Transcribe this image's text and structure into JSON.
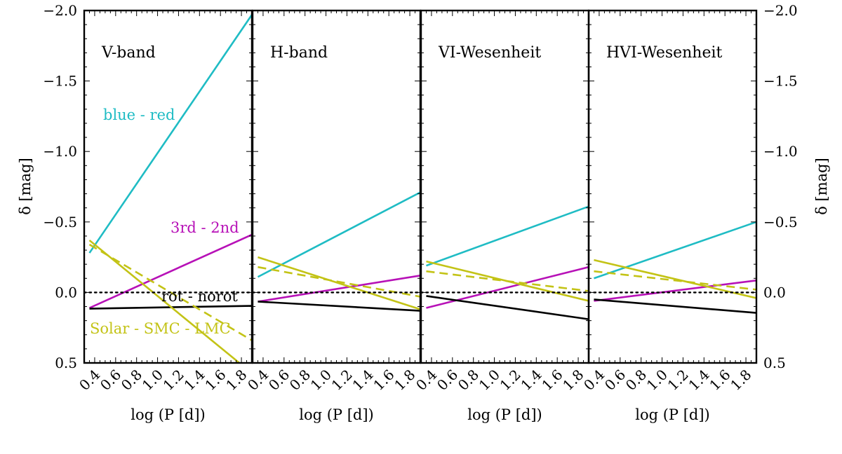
{
  "chart_data": {
    "type": "line",
    "ylabel_left": "δ [mag]",
    "ylabel_right": "δ [mag]",
    "xlabel": "log (P [d])",
    "xlim": [
      0.3,
      1.9
    ],
    "ylim": [
      -2.0,
      0.5
    ],
    "yaxis_inverted": true,
    "xticks": [
      "0.4",
      "0.6",
      "0.8",
      "1.0",
      "1.2",
      "1.4",
      "1.6",
      "1.8"
    ],
    "yticks": [
      "−2.0",
      "−1.5",
      "−1.0",
      "−0.5",
      "0.0",
      "0.5"
    ],
    "colors": {
      "cyan": "#1fbcc4",
      "magenta": "#b711b7",
      "olive": "#c3c316",
      "black": "#000000"
    },
    "annotations": [
      {
        "text": "blue - red",
        "color": "#1fbcc4"
      },
      {
        "text": "3rd - 2nd",
        "color": "#b711b7"
      },
      {
        "text": "rot - norot",
        "color": "#000000"
      },
      {
        "text": "Solar - SMC - LMC",
        "color": "#c3c316"
      }
    ],
    "panels": [
      {
        "title": "V-band",
        "series": [
          {
            "name": "blue - red",
            "color": "#1fbcc4",
            "dash": false,
            "x": [
              0.35,
              1.9
            ],
            "y": [
              -0.28,
              -1.97
            ]
          },
          {
            "name": "3rd - 2nd",
            "color": "#b711b7",
            "dash": false,
            "x": [
              0.35,
              1.9
            ],
            "y": [
              0.11,
              -0.41
            ]
          },
          {
            "name": "rot - norot",
            "color": "#000000",
            "dash": false,
            "x": [
              0.35,
              1.9
            ],
            "y": [
              0.115,
              0.095
            ]
          },
          {
            "name": "Solar - SMC",
            "color": "#c3c316",
            "dash": false,
            "x": [
              0.35,
              1.78
            ],
            "y": [
              -0.37,
              0.5
            ]
          },
          {
            "name": "Solar - LMC",
            "color": "#c3c316",
            "dash": true,
            "x": [
              0.35,
              1.9
            ],
            "y": [
              -0.34,
              0.34
            ]
          },
          {
            "name": "zero",
            "color": "#000000",
            "dotted": true,
            "x": [
              0.3,
              1.9
            ],
            "y": [
              0.0,
              0.0
            ]
          }
        ]
      },
      {
        "title": "H-band",
        "series": [
          {
            "name": "blue - red",
            "color": "#1fbcc4",
            "dash": false,
            "x": [
              0.35,
              1.9
            ],
            "y": [
              -0.11,
              -0.71
            ]
          },
          {
            "name": "3rd - 2nd",
            "color": "#b711b7",
            "dash": false,
            "x": [
              0.35,
              1.9
            ],
            "y": [
              0.065,
              -0.12
            ]
          },
          {
            "name": "rot - norot",
            "color": "#000000",
            "dash": false,
            "x": [
              0.35,
              1.9
            ],
            "y": [
              0.065,
              0.13
            ]
          },
          {
            "name": "Solar - SMC",
            "color": "#c3c316",
            "dash": false,
            "x": [
              0.35,
              1.9
            ],
            "y": [
              -0.25,
              0.12
            ]
          },
          {
            "name": "Solar - LMC",
            "color": "#c3c316",
            "dash": true,
            "x": [
              0.35,
              1.9
            ],
            "y": [
              -0.18,
              0.03
            ]
          },
          {
            "name": "zero",
            "color": "#000000",
            "dotted": true,
            "x": [
              0.3,
              1.9
            ],
            "y": [
              0.0,
              0.0
            ]
          }
        ]
      },
      {
        "title": "VI-Wesenheit",
        "series": [
          {
            "name": "blue - red",
            "color": "#1fbcc4",
            "dash": false,
            "x": [
              0.35,
              1.9
            ],
            "y": [
              -0.19,
              -0.61
            ]
          },
          {
            "name": "3rd - 2nd",
            "color": "#b711b7",
            "dash": false,
            "x": [
              0.35,
              1.9
            ],
            "y": [
              0.11,
              -0.18
            ]
          },
          {
            "name": "rot - norot",
            "color": "#000000",
            "dash": false,
            "x": [
              0.35,
              1.9
            ],
            "y": [
              0.025,
              0.19
            ]
          },
          {
            "name": "Solar - SMC",
            "color": "#c3c316",
            "dash": false,
            "x": [
              0.35,
              1.9
            ],
            "y": [
              -0.22,
              0.06
            ]
          },
          {
            "name": "Solar - LMC",
            "color": "#c3c316",
            "dash": true,
            "x": [
              0.35,
              1.9
            ],
            "y": [
              -0.15,
              -0.01
            ]
          },
          {
            "name": "zero",
            "color": "#000000",
            "dotted": true,
            "x": [
              0.3,
              1.9
            ],
            "y": [
              0.0,
              0.0
            ]
          }
        ]
      },
      {
        "title": "HVI-Wesenheit",
        "series": [
          {
            "name": "blue - red",
            "color": "#1fbcc4",
            "dash": false,
            "x": [
              0.35,
              1.9
            ],
            "y": [
              -0.1,
              -0.5
            ]
          },
          {
            "name": "3rd - 2nd",
            "color": "#b711b7",
            "dash": false,
            "x": [
              0.35,
              1.9
            ],
            "y": [
              0.06,
              -0.085
            ]
          },
          {
            "name": "rot - norot",
            "color": "#000000",
            "dash": false,
            "x": [
              0.35,
              1.9
            ],
            "y": [
              0.05,
              0.145
            ]
          },
          {
            "name": "Solar - SMC",
            "color": "#c3c316",
            "dash": false,
            "x": [
              0.35,
              1.9
            ],
            "y": [
              -0.23,
              0.04
            ]
          },
          {
            "name": "Solar - LMC",
            "color": "#c3c316",
            "dash": true,
            "x": [
              0.35,
              1.9
            ],
            "y": [
              -0.15,
              -0.02
            ]
          },
          {
            "name": "zero",
            "color": "#000000",
            "dotted": true,
            "x": [
              0.3,
              1.9
            ],
            "y": [
              0.0,
              0.0
            ]
          }
        ]
      }
    ]
  }
}
